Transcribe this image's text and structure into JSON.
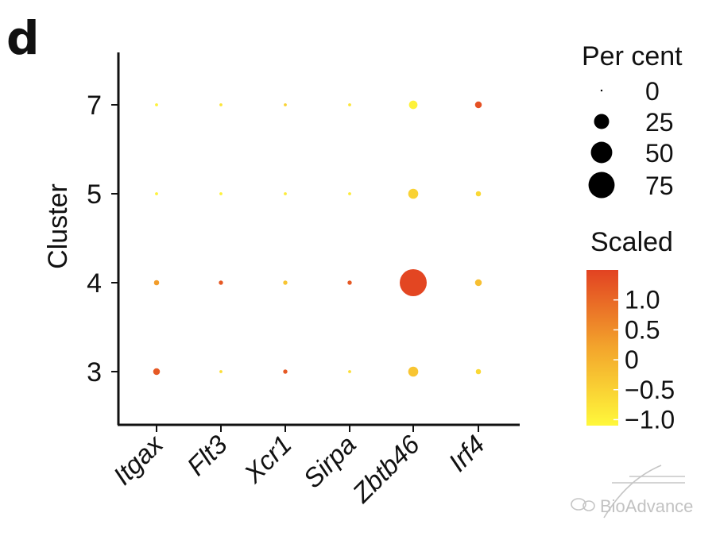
{
  "panel_label": "d",
  "chart_data": {
    "type": "dot",
    "xlabel": "",
    "ylabel": "Cluster",
    "categories": [
      "Itgax",
      "Flt3",
      "Xcr1",
      "Sirpa",
      "Zbtb46",
      "Irf4"
    ],
    "clusters": [
      "7",
      "5",
      "4",
      "3"
    ],
    "points": [
      {
        "gene": "Itgax",
        "cluster": "7",
        "percent": 1,
        "scaled": -1.0
      },
      {
        "gene": "Flt3",
        "cluster": "7",
        "percent": 1,
        "scaled": -0.8
      },
      {
        "gene": "Xcr1",
        "cluster": "7",
        "percent": 1,
        "scaled": -0.5
      },
      {
        "gene": "Sirpa",
        "cluster": "7",
        "percent": 1,
        "scaled": -0.8
      },
      {
        "gene": "Zbtb46",
        "cluster": "7",
        "percent": 8,
        "scaled": -1.0
      },
      {
        "gene": "Irf4",
        "cluster": "7",
        "percent": 5,
        "scaled": 1.3
      },
      {
        "gene": "Itgax",
        "cluster": "5",
        "percent": 1,
        "scaled": -1.0
      },
      {
        "gene": "Flt3",
        "cluster": "5",
        "percent": 1,
        "scaled": -1.0
      },
      {
        "gene": "Xcr1",
        "cluster": "5",
        "percent": 1,
        "scaled": -0.9
      },
      {
        "gene": "Sirpa",
        "cluster": "5",
        "percent": 1,
        "scaled": -0.9
      },
      {
        "gene": "Zbtb46",
        "cluster": "5",
        "percent": 11,
        "scaled": -0.5
      },
      {
        "gene": "Irf4",
        "cluster": "5",
        "percent": 3,
        "scaled": -0.6
      },
      {
        "gene": "Itgax",
        "cluster": "4",
        "percent": 3,
        "scaled": 0.3
      },
      {
        "gene": "Flt3",
        "cluster": "4",
        "percent": 2,
        "scaled": 1.2
      },
      {
        "gene": "Xcr1",
        "cluster": "4",
        "percent": 2,
        "scaled": -0.3
      },
      {
        "gene": "Sirpa",
        "cluster": "4",
        "percent": 2,
        "scaled": 1.2
      },
      {
        "gene": "Zbtb46",
        "cluster": "4",
        "percent": 80,
        "scaled": 1.45
      },
      {
        "gene": "Irf4",
        "cluster": "4",
        "percent": 5,
        "scaled": -0.2
      },
      {
        "gene": "Itgax",
        "cluster": "3",
        "percent": 5,
        "scaled": 1.2
      },
      {
        "gene": "Flt3",
        "cluster": "3",
        "percent": 1,
        "scaled": -0.7
      },
      {
        "gene": "Xcr1",
        "cluster": "3",
        "percent": 2,
        "scaled": 1.2
      },
      {
        "gene": "Sirpa",
        "cluster": "3",
        "percent": 1,
        "scaled": -0.7
      },
      {
        "gene": "Zbtb46",
        "cluster": "3",
        "percent": 11,
        "scaled": -0.3
      },
      {
        "gene": "Irf4",
        "cluster": "3",
        "percent": 3,
        "scaled": -0.6
      }
    ],
    "size_legend": {
      "title": "Per cent",
      "values": [
        0,
        25,
        50,
        75
      ],
      "labels": [
        "0",
        "25",
        "50",
        "75"
      ]
    },
    "color_legend": {
      "title": "Scaled",
      "ticks": [
        1.0,
        0.5,
        0,
        -0.5,
        -1.0
      ],
      "labels": [
        "1.0",
        "0.5",
        "0",
        "−0.5",
        "−1.0"
      ],
      "range": [
        -1.1,
        1.5
      ],
      "low_color": "#FFF83B",
      "mid_color": "#F3A52C",
      "high_color": "#E24222"
    },
    "grid": false
  },
  "watermark": {
    "text": "BioAdvance"
  }
}
